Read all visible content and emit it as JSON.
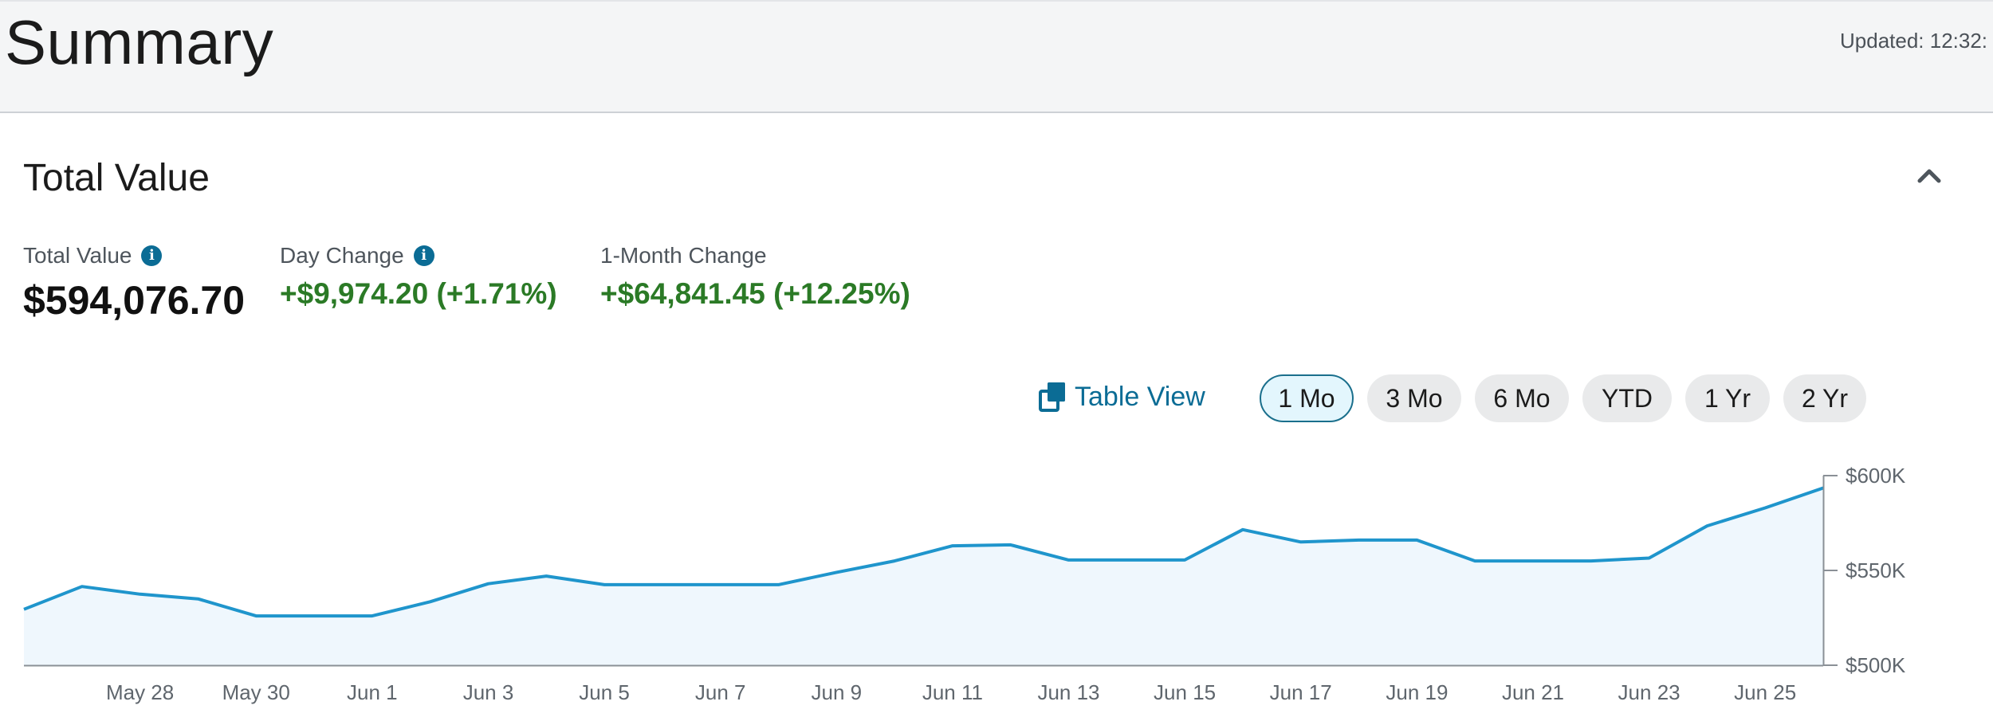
{
  "header": {
    "title": "Summary",
    "updated": "Updated: 12:32:"
  },
  "section": {
    "title": "Total Value",
    "collapse_icon": "chevron-up-icon"
  },
  "metrics": {
    "total_value": {
      "label": "Total Value",
      "value": "$594,076.70",
      "info_icon": "info-icon"
    },
    "day_change": {
      "label": "Day Change",
      "value": "+$9,974.20 (+1.71%)",
      "info_icon": "info-icon"
    },
    "month_change": {
      "label": "1-Month Change",
      "value": "+$64,841.45 (+12.25%)"
    }
  },
  "info_glyph": "i",
  "toolbar": {
    "table_view_label": "Table View",
    "table_view_icon": "table-view-icon",
    "ranges": [
      {
        "label": "1 Mo",
        "active": true
      },
      {
        "label": "3 Mo",
        "active": false
      },
      {
        "label": "6 Mo",
        "active": false
      },
      {
        "label": "YTD",
        "active": false
      },
      {
        "label": "1 Yr",
        "active": false
      },
      {
        "label": "2 Yr",
        "active": false
      }
    ]
  },
  "colors": {
    "accent": "#0b6c95",
    "positive": "#2b7a26",
    "line": "#1f95cc",
    "area": "#eff7fd",
    "axis": "#8a9096",
    "active_range_bg": "#e3f6fd"
  },
  "chart_data": {
    "type": "area",
    "title": "",
    "xlabel": "",
    "ylabel": "",
    "x": [
      "May 26",
      "May 27",
      "May 28",
      "May 29",
      "May 30",
      "May 31",
      "Jun 1",
      "Jun 2",
      "Jun 3",
      "Jun 4",
      "Jun 5",
      "Jun 6",
      "Jun 7",
      "Jun 8",
      "Jun 9",
      "Jun 10",
      "Jun 11",
      "Jun 12",
      "Jun 13",
      "Jun 14",
      "Jun 15",
      "Jun 16",
      "Jun 17",
      "Jun 18",
      "Jun 19",
      "Jun 20",
      "Jun 21",
      "Jun 22",
      "Jun 23",
      "Jun 24",
      "Jun 25",
      "Jun 26"
    ],
    "values": [
      529.5,
      541.5,
      537.5,
      535,
      526,
      526,
      526,
      533.5,
      543,
      547,
      542.5,
      542.5,
      542.5,
      542.5,
      549,
      555,
      563,
      563.5,
      555.5,
      555.5,
      555.5,
      571.5,
      565,
      566,
      566,
      555,
      555,
      555,
      556.5,
      573.5,
      583,
      593.5
    ],
    "x_tick_labels": [
      "May 28",
      "May 30",
      "Jun 1",
      "Jun 3",
      "Jun 5",
      "Jun 7",
      "Jun 9",
      "Jun 11",
      "Jun 13",
      "Jun 15",
      "Jun 17",
      "Jun 19",
      "Jun 21",
      "Jun 23",
      "Jun 25"
    ],
    "y_ticks": [
      {
        "value": 500,
        "label": "$500K"
      },
      {
        "value": 550,
        "label": "$550K"
      },
      {
        "value": 600,
        "label": "$600K"
      }
    ],
    "unit": "thousands USD",
    "ylim": [
      500,
      600
    ],
    "y_axis_position": "right",
    "grid": false
  }
}
